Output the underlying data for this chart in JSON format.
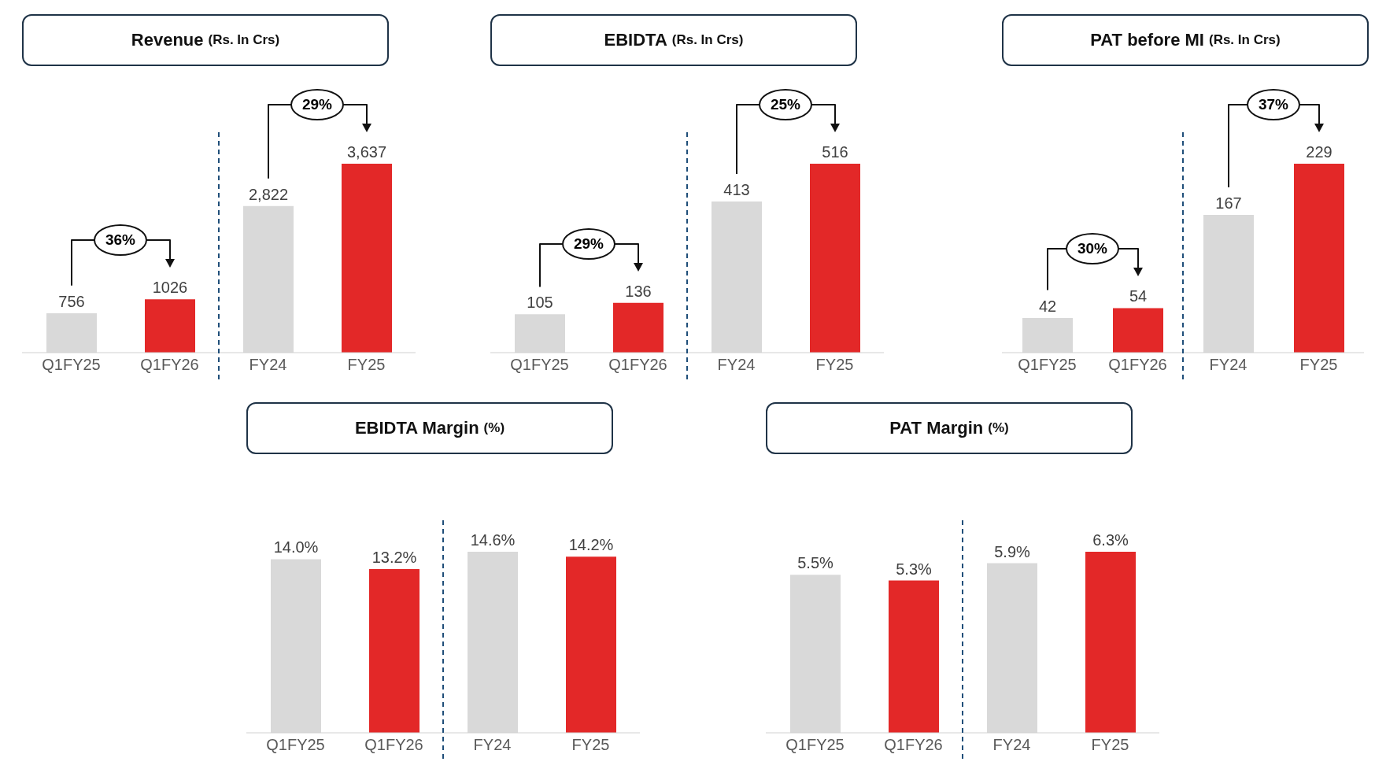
{
  "chart_data": [
    {
      "type": "bar",
      "title": "Revenue",
      "subtitle": "(Rs. In Crs)",
      "categories": [
        "Q1FY25",
        "Q1FY26",
        "FY24",
        "FY25"
      ],
      "values": [
        756,
        1026,
        2822,
        3637
      ],
      "colors": [
        "#d9d9d9",
        "#e32828",
        "#d9d9d9",
        "#e32828"
      ],
      "data_labels": true,
      "value_labels": [
        "756",
        "1026",
        "2,822",
        "3,637"
      ],
      "annotations": [
        "36%",
        "29%"
      ]
    },
    {
      "type": "bar",
      "title": "EBIDTA",
      "subtitle": "(Rs. In Crs)",
      "categories": [
        "Q1FY25",
        "Q1FY26",
        "FY24",
        "FY25"
      ],
      "values": [
        105,
        136,
        413,
        516
      ],
      "colors": [
        "#d9d9d9",
        "#e32828",
        "#d9d9d9",
        "#e32828"
      ],
      "data_labels": true,
      "annotations": [
        "29%",
        "25%"
      ]
    },
    {
      "type": "bar",
      "title": "PAT before MI",
      "subtitle": "(Rs. In Crs)",
      "categories": [
        "Q1FY25",
        "Q1FY26",
        "FY24",
        "FY25"
      ],
      "values": [
        42,
        54,
        167,
        229
      ],
      "colors": [
        "#d9d9d9",
        "#e32828",
        "#d9d9d9",
        "#e32828"
      ],
      "data_labels": true,
      "annotations": [
        "30%",
        "37%"
      ]
    },
    {
      "type": "bar",
      "title": "EBIDTA Margin",
      "subtitle": "(%)",
      "categories": [
        "Q1FY25",
        "Q1FY26",
        "FY24",
        "FY25"
      ],
      "values": [
        14.0,
        13.2,
        14.6,
        14.2
      ],
      "colors": [
        "#d9d9d9",
        "#e32828",
        "#d9d9d9",
        "#e32828"
      ],
      "data_labels": true,
      "value_labels": [
        "14.0%",
        "13.2%",
        "14.6%",
        "14.2%"
      ]
    },
    {
      "type": "bar",
      "title": "PAT Margin",
      "subtitle": "(%)",
      "categories": [
        "Q1FY25",
        "Q1FY26",
        "FY24",
        "FY25"
      ],
      "values": [
        5.5,
        5.3,
        5.9,
        6.3
      ],
      "colors": [
        "#d9d9d9",
        "#e32828",
        "#d9d9d9",
        "#e32828"
      ],
      "data_labels": true,
      "value_labels": [
        "5.5%",
        "5.3%",
        "5.9%",
        "6.3%"
      ]
    }
  ]
}
